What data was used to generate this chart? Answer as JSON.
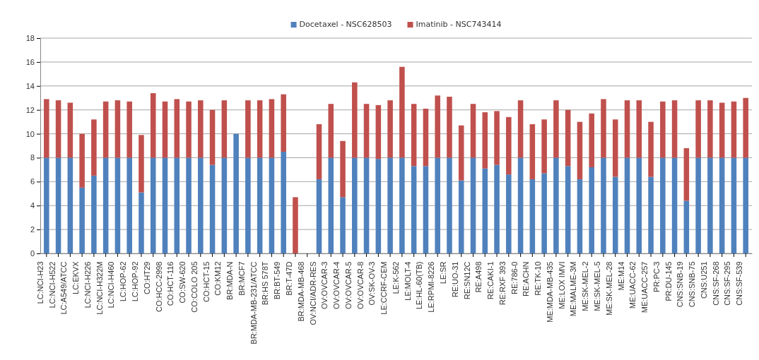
{
  "chart_data": {
    "type": "bar",
    "stacked": true,
    "grid": "y",
    "legend": "top",
    "categories": [
      "LC:NCI-H23",
      "LC:NCI-H522",
      "LC:A549/ATCC",
      "LC:EKVX",
      "LC:NCI-H226",
      "LC:NCI-H322M",
      "LC:NCI-H460",
      "LC:HOP-62",
      "LC:HOP-92",
      "CO:HT29",
      "CO:HCC-2998",
      "CO:HCT-116",
      "CO:SW-620",
      "CO:COLO 205",
      "CO:HCT-15",
      "CO:KM12",
      "BR:MDA-N",
      "BR:MCF7",
      "BR:MDA-MB-231/ATCC",
      "BR:HS 578T",
      "BR:BT-549",
      "BR:T-47D",
      "BR:MDA-MB-468",
      "OV:NCI/ADR-RES",
      "OV:OVCAR-3",
      "OV:OVCAR-4",
      "OV:OVCAR-5",
      "OV:OVCAR-8",
      "OV:SK-OV-3",
      "LE:CCRF-CEM",
      "LE:K-562",
      "LE:MOLT-4",
      "LE:HL-60(TB)",
      "LE:RPMI-8226",
      "LE:SR",
      "RE:UO-31",
      "RE:SN12C",
      "RE:A498",
      "RE:CAKI-1",
      "RE:RXF 393",
      "RE:786-0",
      "RE:ACHN",
      "RE:TK-10",
      "ME:MDA-MB-435",
      "ME:LOX IMVI",
      "ME:MALME-3M",
      "ME:SK-MEL-2",
      "ME:SK-MEL-5",
      "ME:SK-MEL-28",
      "ME:M14",
      "ME:UACC-62",
      "ME:UACC-257",
      "PR:PC-3",
      "PR:DU-145",
      "CNS:SNB-19",
      "CNS:SNB-75",
      "CNS:U251",
      "CNS:SF-268",
      "CNS:SF-295",
      "CNS:SF-539"
    ],
    "series": [
      {
        "name": "Docetaxel - NSC628503",
        "color": "#4f81bd",
        "values": [
          8,
          8,
          8,
          5.5,
          6.5,
          8,
          8,
          8,
          5.1,
          8,
          8,
          8,
          8,
          8,
          7.4,
          8,
          10,
          8,
          8,
          8,
          8.5,
          0,
          null,
          6.2,
          8,
          4.7,
          8,
          8,
          7.9,
          8,
          8,
          7.3,
          7.3,
          8,
          8,
          6.1,
          8,
          7.1,
          7.4,
          6.6,
          8,
          6.2,
          6.7,
          8,
          7.3,
          6.2,
          7.2,
          8,
          6.4,
          8,
          8,
          6.4,
          8,
          8,
          4.4,
          8,
          8,
          8,
          8,
          8
        ]
      },
      {
        "name": "Imatinib - NSC743414",
        "color": "#c0504d",
        "values": [
          4.9,
          4.8,
          4.6,
          4.5,
          4.7,
          4.7,
          4.8,
          4.7,
          4.8,
          5.4,
          4.7,
          4.9,
          4.7,
          4.8,
          4.6,
          4.8,
          0,
          4.8,
          4.8,
          4.9,
          4.8,
          4.7,
          null,
          4.6,
          4.5,
          4.7,
          6.3,
          4.5,
          4.5,
          4.8,
          7.6,
          5.2,
          4.8,
          5.2,
          5.1,
          4.6,
          4.5,
          4.7,
          4.5,
          4.8,
          4.8,
          4.6,
          4.5,
          4.8,
          4.7,
          4.8,
          4.5,
          4.9,
          4.8,
          4.8,
          4.8,
          4.6,
          4.7,
          4.8,
          4.4,
          4.8,
          4.8,
          4.6,
          4.7,
          5.0
        ]
      }
    ],
    "ylim": [
      0,
      18
    ],
    "yticks": [
      0,
      2,
      4,
      6,
      8,
      10,
      12,
      14,
      16,
      18
    ]
  }
}
